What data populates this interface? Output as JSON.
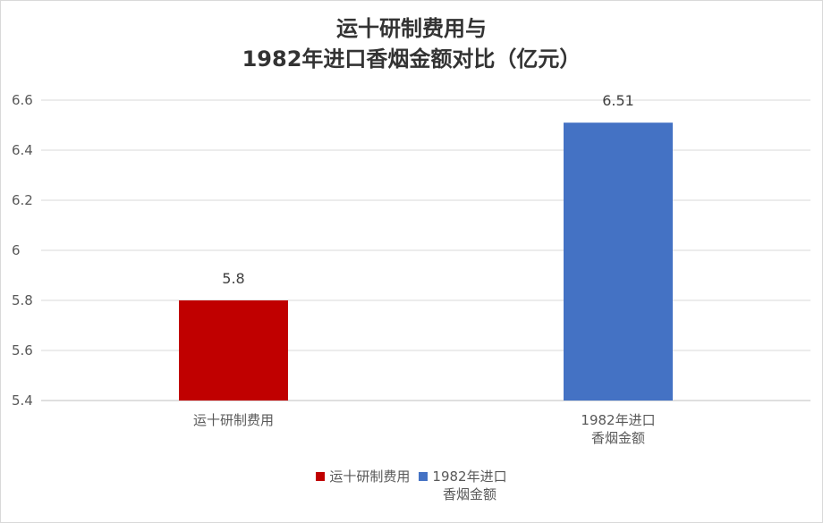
{
  "chart_data": {
    "type": "bar",
    "title": "运十研制费用与\n1982年进口香烟金额对比（亿元）",
    "categories": [
      "运十研制费用",
      "1982年进口\n香烟金额"
    ],
    "values": [
      5.8,
      6.51
    ],
    "colors": [
      "#c00000",
      "#4472c4"
    ],
    "ylim": [
      5.4,
      6.6
    ],
    "yticks": [
      5.4,
      5.6,
      5.8,
      6,
      6.2,
      6.4,
      6.6
    ],
    "grid": true,
    "legend": "bottom"
  }
}
